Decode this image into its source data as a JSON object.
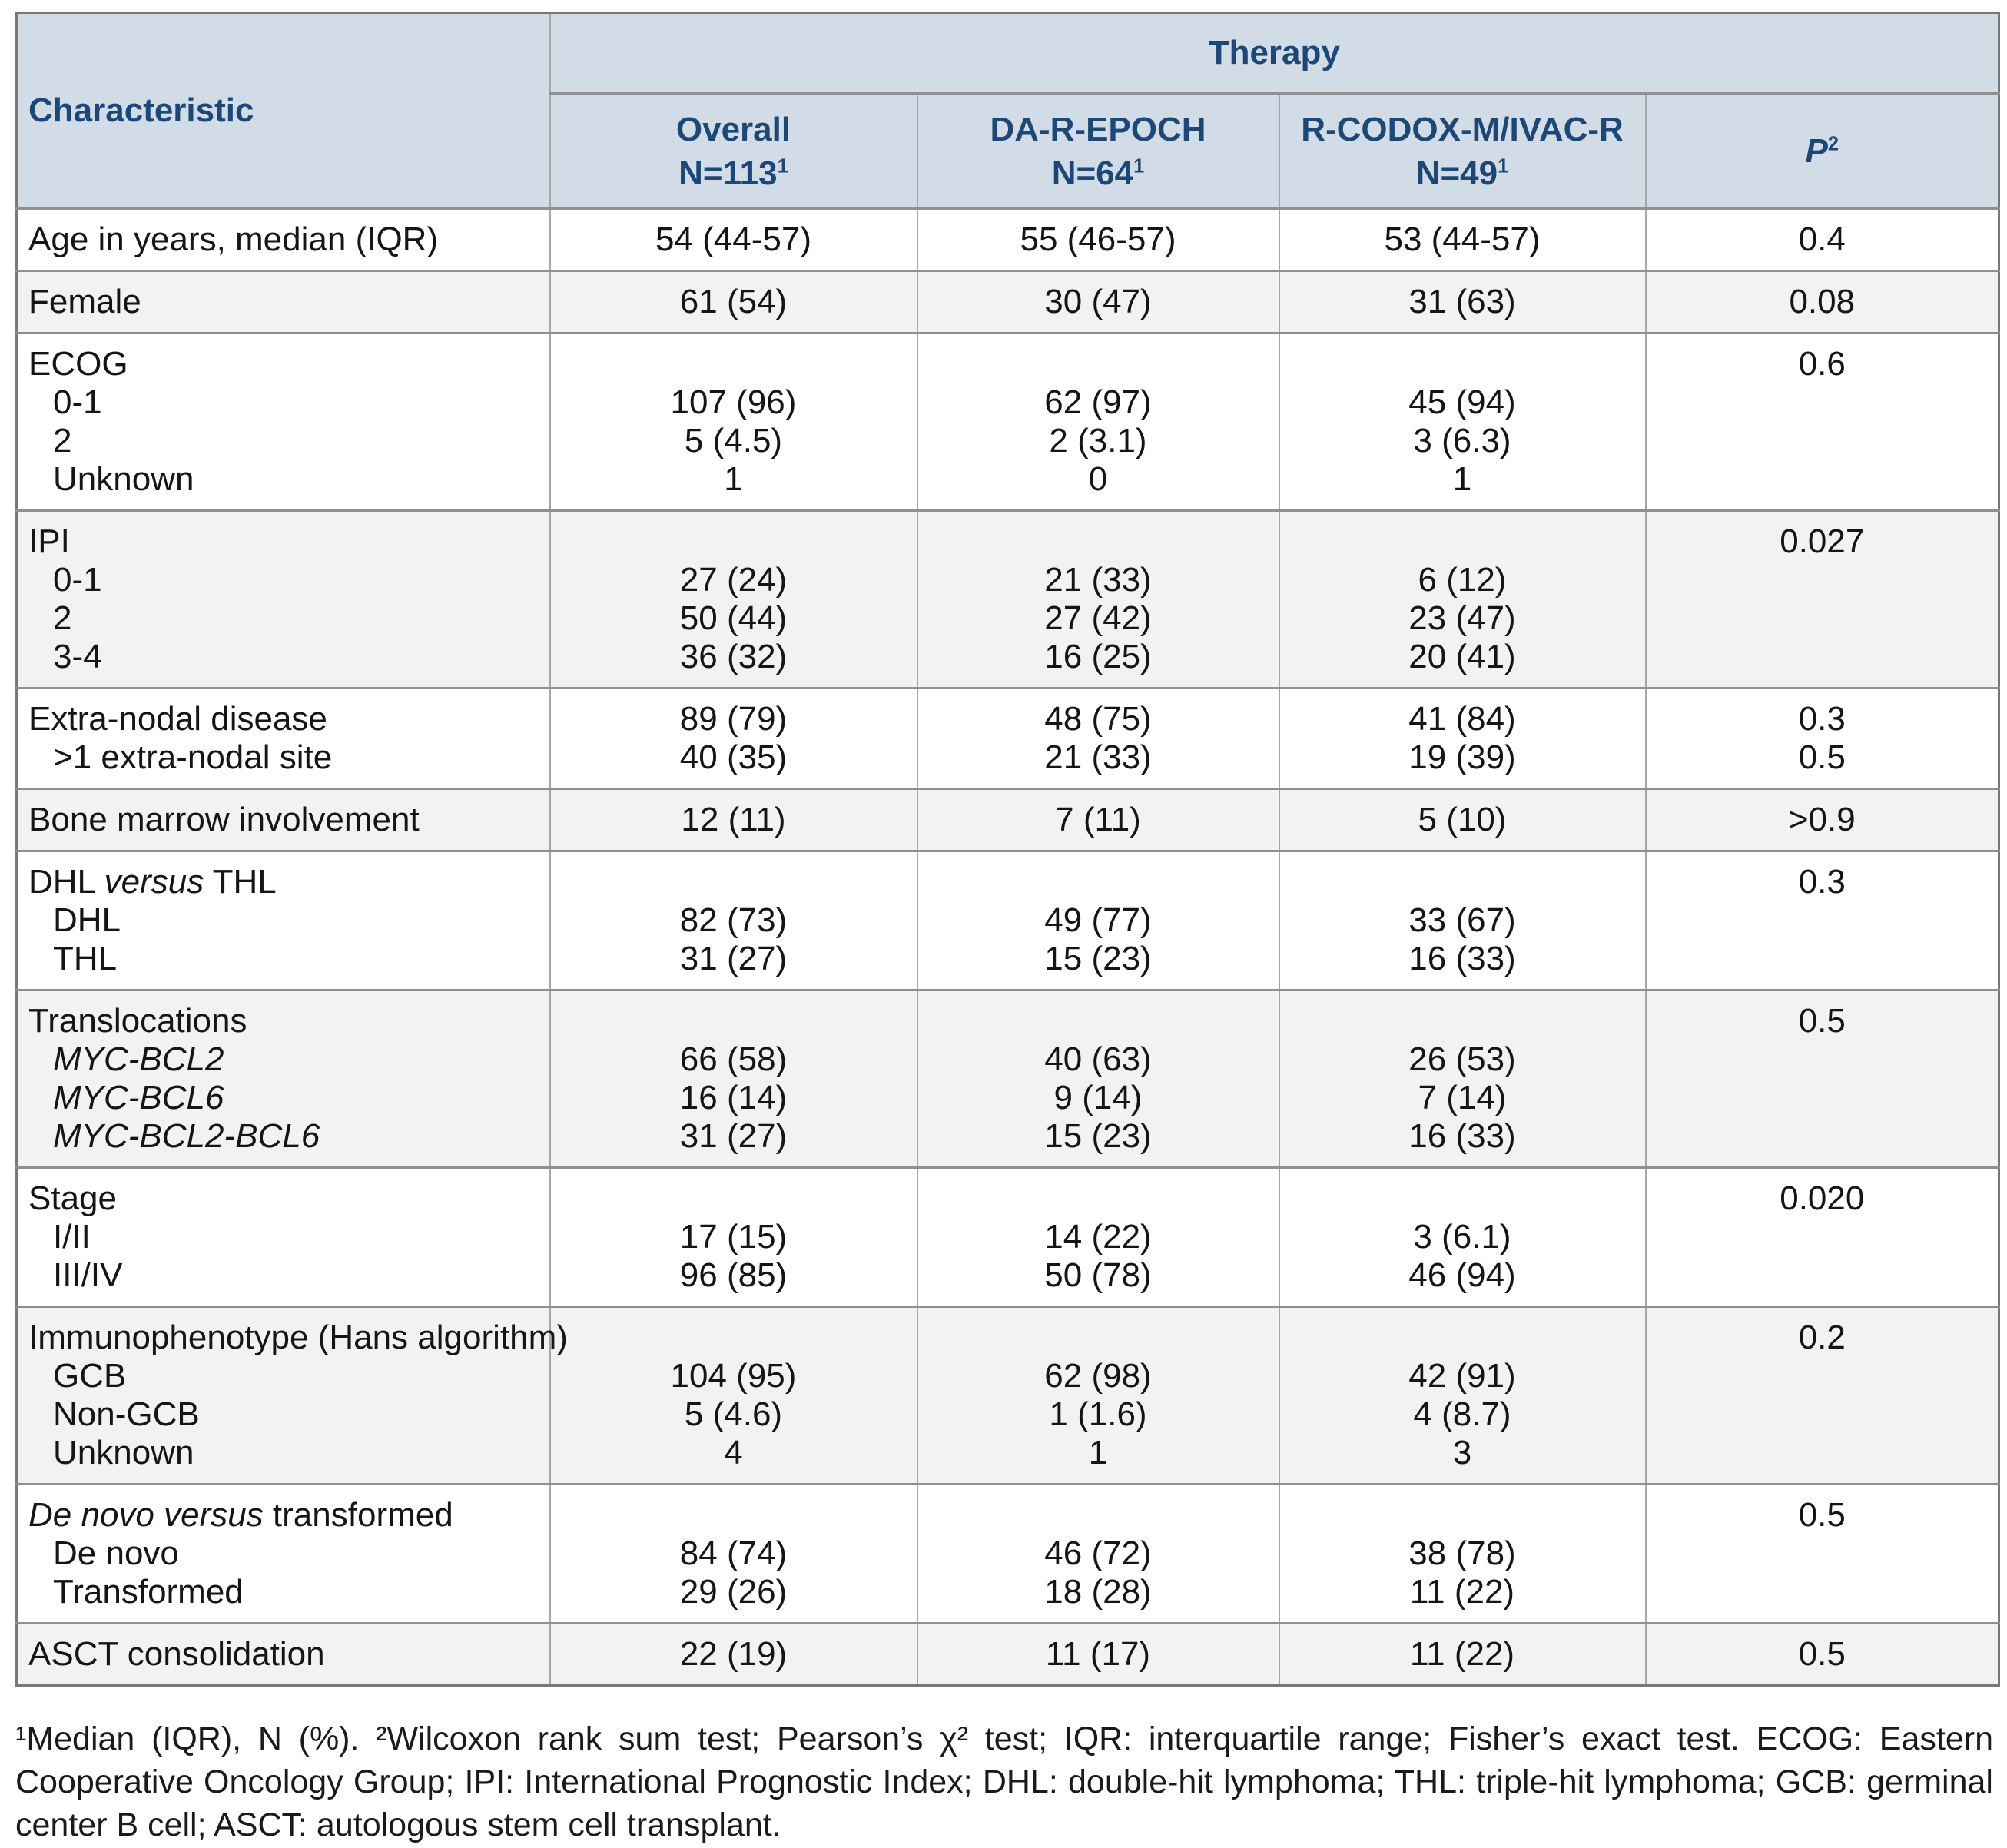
{
  "colors": {
    "header_bg": "#d2dce6",
    "header_text": "#1c4878",
    "zebra_row": "#f2f2f2",
    "row_border": "#8f8f8f",
    "column_border": "#a5a5a5",
    "outer_border": "#787878"
  },
  "table": {
    "header": {
      "characteristic": "Characteristic",
      "therapy": "Therapy",
      "columns": [
        {
          "name": "Overall",
          "n": "N=113",
          "sup": "1"
        },
        {
          "name": "DA-R-EPOCH",
          "n": "N=64",
          "sup": "1"
        },
        {
          "name": "R-CODOX-M/IVAC-R",
          "n": "N=49",
          "sup": "1"
        }
      ],
      "p_label": "P",
      "p_sup": "2"
    },
    "rows": [
      {
        "label": [
          {
            "ind": 0,
            "segs": [
              [
                "Age in years, median (IQR)",
                0
              ]
            ]
          }
        ],
        "overall": [
          "54 (44-57)"
        ],
        "da_r_epoch": [
          "55 (46-57)"
        ],
        "r_codox": [
          "53 (44-57)"
        ],
        "p": [
          "0.4"
        ]
      },
      {
        "label": [
          {
            "ind": 0,
            "segs": [
              [
                "Female",
                0
              ]
            ]
          }
        ],
        "overall": [
          "61 (54)"
        ],
        "da_r_epoch": [
          "30 (47)"
        ],
        "r_codox": [
          "31 (63)"
        ],
        "p": [
          "0.08"
        ]
      },
      {
        "label": [
          {
            "ind": 0,
            "segs": [
              [
                "ECOG",
                0
              ]
            ]
          },
          {
            "ind": 1,
            "segs": [
              [
                "0-1",
                0
              ]
            ]
          },
          {
            "ind": 1,
            "segs": [
              [
                "2",
                0
              ]
            ]
          },
          {
            "ind": 1,
            "segs": [
              [
                "Unknown",
                0
              ]
            ]
          }
        ],
        "overall": [
          "",
          "107 (96)",
          "5 (4.5)",
          "1"
        ],
        "da_r_epoch": [
          "",
          "62 (97)",
          "2 (3.1)",
          "0"
        ],
        "r_codox": [
          "",
          "45 (94)",
          "3 (6.3)",
          "1"
        ],
        "p": [
          "0.6",
          "",
          "",
          ""
        ]
      },
      {
        "label": [
          {
            "ind": 0,
            "segs": [
              [
                "IPI",
                0
              ]
            ]
          },
          {
            "ind": 1,
            "segs": [
              [
                "0-1",
                0
              ]
            ]
          },
          {
            "ind": 1,
            "segs": [
              [
                "2",
                0
              ]
            ]
          },
          {
            "ind": 1,
            "segs": [
              [
                "3-4",
                0
              ]
            ]
          }
        ],
        "overall": [
          "",
          "27 (24)",
          "50 (44)",
          "36 (32)"
        ],
        "da_r_epoch": [
          "",
          "21 (33)",
          "27 (42)",
          "16 (25)"
        ],
        "r_codox": [
          "",
          "6 (12)",
          "23 (47)",
          "20 (41)"
        ],
        "p": [
          "0.027",
          "",
          "",
          ""
        ]
      },
      {
        "label": [
          {
            "ind": 0,
            "segs": [
              [
                "Extra-nodal disease",
                0
              ]
            ]
          },
          {
            "ind": 1,
            "segs": [
              [
                ">1 extra-nodal site",
                0
              ]
            ]
          }
        ],
        "overall": [
          "89 (79)",
          "40 (35)"
        ],
        "da_r_epoch": [
          "48 (75)",
          "21 (33)"
        ],
        "r_codox": [
          "41 (84)",
          "19 (39)"
        ],
        "p": [
          "0.3",
          "0.5"
        ]
      },
      {
        "label": [
          {
            "ind": 0,
            "segs": [
              [
                "Bone marrow involvement",
                0
              ]
            ]
          }
        ],
        "overall": [
          "12 (11)"
        ],
        "da_r_epoch": [
          "7 (11)"
        ],
        "r_codox": [
          "5 (10)"
        ],
        "p": [
          ">0.9"
        ]
      },
      {
        "label": [
          {
            "ind": 0,
            "segs": [
              [
                "DHL ",
                0
              ],
              [
                "versus",
                1
              ],
              [
                " THL",
                0
              ]
            ]
          },
          {
            "ind": 1,
            "segs": [
              [
                "DHL",
                0
              ]
            ]
          },
          {
            "ind": 1,
            "segs": [
              [
                "THL",
                0
              ]
            ]
          }
        ],
        "overall": [
          "",
          "82 (73)",
          "31 (27)"
        ],
        "da_r_epoch": [
          "",
          "49 (77)",
          "15 (23)"
        ],
        "r_codox": [
          "",
          "33 (67)",
          "16 (33)"
        ],
        "p": [
          "0.3",
          "",
          ""
        ]
      },
      {
        "label": [
          {
            "ind": 0,
            "segs": [
              [
                "Translocations",
                0
              ]
            ]
          },
          {
            "ind": 1,
            "segs": [
              [
                "MYC-BCL2",
                1
              ]
            ]
          },
          {
            "ind": 1,
            "segs": [
              [
                "MYC-BCL6",
                1
              ]
            ]
          },
          {
            "ind": 1,
            "segs": [
              [
                "MYC-BCL2-BCL6",
                1
              ]
            ]
          }
        ],
        "overall": [
          "",
          "66 (58)",
          "16 (14)",
          "31 (27)"
        ],
        "da_r_epoch": [
          "",
          "40 (63)",
          "9 (14)",
          "15 (23)"
        ],
        "r_codox": [
          "",
          "26 (53)",
          "7 (14)",
          "16 (33)"
        ],
        "p": [
          "0.5",
          "",
          "",
          ""
        ]
      },
      {
        "label": [
          {
            "ind": 0,
            "segs": [
              [
                "Stage",
                0
              ]
            ]
          },
          {
            "ind": 1,
            "segs": [
              [
                "I/II",
                0
              ]
            ]
          },
          {
            "ind": 1,
            "segs": [
              [
                "III/IV",
                0
              ]
            ]
          }
        ],
        "overall": [
          "",
          "17 (15)",
          "96 (85)"
        ],
        "da_r_epoch": [
          "",
          "14 (22)",
          "50 (78)"
        ],
        "r_codox": [
          "",
          "3 (6.1)",
          "46 (94)"
        ],
        "p": [
          "0.020",
          "",
          ""
        ]
      },
      {
        "label": [
          {
            "ind": 0,
            "segs": [
              [
                "Immunophenotype (Hans algorithm)",
                0
              ]
            ]
          },
          {
            "ind": 1,
            "segs": [
              [
                "GCB",
                0
              ]
            ]
          },
          {
            "ind": 1,
            "segs": [
              [
                "Non-GCB",
                0
              ]
            ]
          },
          {
            "ind": 1,
            "segs": [
              [
                "Unknown",
                0
              ]
            ]
          }
        ],
        "overall": [
          "",
          "104 (95)",
          "5 (4.6)",
          "4"
        ],
        "da_r_epoch": [
          "",
          "62 (98)",
          "1 (1.6)",
          "1"
        ],
        "r_codox": [
          "",
          "42 (91)",
          "4 (8.7)",
          "3"
        ],
        "p": [
          "0.2",
          "",
          "",
          ""
        ]
      },
      {
        "label": [
          {
            "ind": 0,
            "segs": [
              [
                "De novo versus",
                1
              ],
              [
                " transformed",
                0
              ]
            ]
          },
          {
            "ind": 1,
            "segs": [
              [
                "De novo",
                0
              ]
            ]
          },
          {
            "ind": 1,
            "segs": [
              [
                "Transformed",
                0
              ]
            ]
          }
        ],
        "overall": [
          "",
          "84 (74)",
          "29 (26)"
        ],
        "da_r_epoch": [
          "",
          "46 (72)",
          "18 (28)"
        ],
        "r_codox": [
          "",
          "38 (78)",
          "11 (22)"
        ],
        "p": [
          "0.5",
          "",
          ""
        ]
      },
      {
        "label": [
          {
            "ind": 0,
            "segs": [
              [
                "ASCT consolidation",
                0
              ]
            ]
          }
        ],
        "overall": [
          "22 (19)"
        ],
        "da_r_epoch": [
          "11 (17)"
        ],
        "r_codox": [
          "11 (22)"
        ],
        "p": [
          "0.5"
        ]
      }
    ]
  },
  "footnote": "¹Median (IQR), N (%). ²Wilcoxon rank sum test; Pearson’s χ² test; IQR: interquartile range; Fisher’s exact test. ECOG: Eastern Cooperative Oncology Group; IPI: International Prognostic Index; DHL: double-hit lymphoma; THL: triple-hit lymphoma; GCB: germinal center B cell; ASCT: autologous stem cell transplant."
}
